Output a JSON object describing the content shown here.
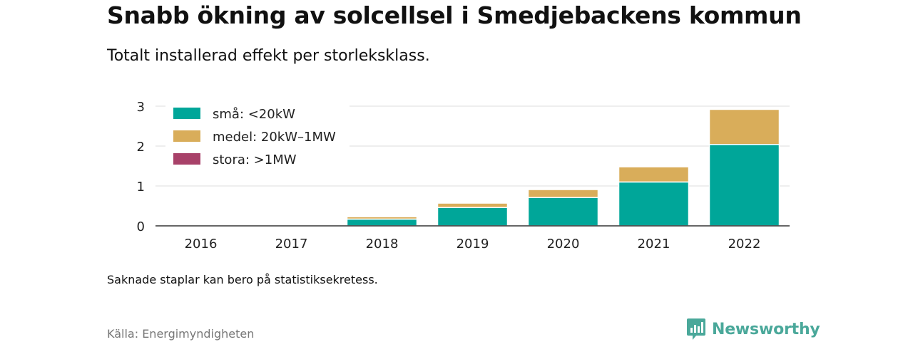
{
  "title": "Snabb ökning av solcellsel i Smedjebackens kommun",
  "subtitle": "Totalt installerad effekt per storleksklass.",
  "note": "Saknade staplar kan bero på statistiksekretess.",
  "source": "Källa: Energimyndigheten",
  "brand": {
    "name": "Newsworthy",
    "color": "#4aa89a",
    "icon": "newsworthy-logo-icon"
  },
  "chart_data": {
    "type": "bar",
    "stacked": true,
    "categories": [
      "2016",
      "2017",
      "2018",
      "2019",
      "2020",
      "2021",
      "2022"
    ],
    "series": [
      {
        "name": "små: <20kW",
        "color": "#00a699",
        "values": [
          0,
          0,
          0.17,
          0.46,
          0.71,
          1.1,
          2.04
        ]
      },
      {
        "name": "medel: 20kW–1MW",
        "color": "#d9ad5a",
        "values": [
          0,
          0,
          0.06,
          0.11,
          0.2,
          0.38,
          0.88
        ]
      },
      {
        "name": "stora: >1MW",
        "color": "#a84169",
        "values": [
          0,
          0,
          0,
          0,
          0,
          0,
          0
        ]
      }
    ],
    "yticks": [
      "0",
      "1",
      "2",
      "3"
    ],
    "ylim": [
      0,
      3
    ],
    "grid": true,
    "legend": "top-left",
    "xlabel": "",
    "ylabel": ""
  }
}
